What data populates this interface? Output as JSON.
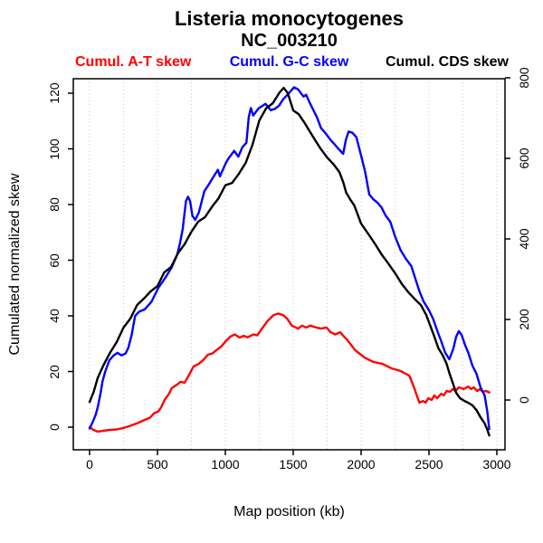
{
  "title": {
    "line1": "Listeria monocytogenes",
    "line2": "NC_003210"
  },
  "axis_labels": {
    "x": "Map position (kb)",
    "y_left": "Cumulated normalized skew"
  },
  "chart_data": {
    "type": "line",
    "title": "Listeria monocytogenes NC_003210",
    "xlabel": "Map position (kb)",
    "ylabel_left": "Cumulated normalized skew",
    "x_ticks": [
      0,
      500,
      1000,
      1500,
      2000,
      2500,
      3000
    ],
    "y_left_ticks": [
      0,
      20,
      40,
      60,
      80,
      100,
      120
    ],
    "y_right_ticks": [
      0,
      200,
      400,
      600,
      800
    ],
    "gridline_interval_kb": 250,
    "x_axis_max_kb": 3000,
    "genome_length_kb": 2944,
    "grid_color": "#c9c9c9",
    "legend_position": "top",
    "series": [
      {
        "name": "Cumul. A-T skew",
        "color": "#ff0000",
        "axis": "left",
        "points": [
          [
            0,
            0
          ],
          [
            30,
            -1
          ],
          [
            60,
            -1.6
          ],
          [
            100,
            -1.3
          ],
          [
            150,
            -1
          ],
          [
            200,
            -0.8
          ],
          [
            250,
            -0.3
          ],
          [
            300,
            0.5
          ],
          [
            355,
            1.5
          ],
          [
            405,
            2.6
          ],
          [
            445,
            3.4
          ],
          [
            475,
            5
          ],
          [
            505,
            5.6
          ],
          [
            525,
            7
          ],
          [
            555,
            10
          ],
          [
            585,
            12
          ],
          [
            605,
            14
          ],
          [
            635,
            15
          ],
          [
            670,
            16.3
          ],
          [
            700,
            16
          ],
          [
            735,
            19
          ],
          [
            765,
            21.8
          ],
          [
            805,
            22.8
          ],
          [
            835,
            24
          ],
          [
            870,
            26
          ],
          [
            905,
            26.5
          ],
          [
            935,
            27.7
          ],
          [
            970,
            29
          ],
          [
            1005,
            31
          ],
          [
            1035,
            32.5
          ],
          [
            1070,
            33.3
          ],
          [
            1105,
            32.2
          ],
          [
            1135,
            32.8
          ],
          [
            1165,
            32.3
          ],
          [
            1205,
            33.3
          ],
          [
            1235,
            33
          ],
          [
            1270,
            35.4
          ],
          [
            1310,
            38.1
          ],
          [
            1355,
            40.3
          ],
          [
            1390,
            40.8
          ],
          [
            1425,
            40.3
          ],
          [
            1455,
            39
          ],
          [
            1490,
            36.5
          ],
          [
            1535,
            35.4
          ],
          [
            1565,
            36.5
          ],
          [
            1595,
            35.8
          ],
          [
            1625,
            36.5
          ],
          [
            1670,
            35.8
          ],
          [
            1705,
            35.4
          ],
          [
            1745,
            35.8
          ],
          [
            1775,
            34.1
          ],
          [
            1810,
            33.3
          ],
          [
            1845,
            34.1
          ],
          [
            1875,
            32.5
          ],
          [
            1895,
            31.5
          ],
          [
            1955,
            27.7
          ],
          [
            2025,
            25
          ],
          [
            2090,
            23.4
          ],
          [
            2155,
            22.8
          ],
          [
            2225,
            21.1
          ],
          [
            2290,
            20.2
          ],
          [
            2355,
            18.5
          ],
          [
            2390,
            14.3
          ],
          [
            2410,
            11.4
          ],
          [
            2430,
            8.8
          ],
          [
            2455,
            9.4
          ],
          [
            2475,
            8.8
          ],
          [
            2495,
            10.4
          ],
          [
            2520,
            9.8
          ],
          [
            2540,
            11.4
          ],
          [
            2560,
            10.4
          ],
          [
            2590,
            12
          ],
          [
            2610,
            11.4
          ],
          [
            2630,
            13
          ],
          [
            2655,
            12.7
          ],
          [
            2675,
            13.7
          ],
          [
            2695,
            13
          ],
          [
            2720,
            14.3
          ],
          [
            2755,
            13.7
          ],
          [
            2790,
            14.6
          ],
          [
            2810,
            13.7
          ],
          [
            2830,
            14.3
          ],
          [
            2855,
            13
          ],
          [
            2875,
            13.7
          ],
          [
            2895,
            12.7
          ],
          [
            2920,
            13
          ],
          [
            2944,
            12.5
          ]
        ]
      },
      {
        "name": "Cumul. G-C skew",
        "color": "#0000ff",
        "axis": "left",
        "points": [
          [
            0,
            -0.5
          ],
          [
            20,
            1.5
          ],
          [
            45,
            4.5
          ],
          [
            60,
            7.2
          ],
          [
            80,
            12
          ],
          [
            95,
            16.5
          ],
          [
            115,
            20
          ],
          [
            145,
            24
          ],
          [
            175,
            25.7
          ],
          [
            205,
            26.7
          ],
          [
            235,
            25.8
          ],
          [
            265,
            26.5
          ],
          [
            285,
            28.5
          ],
          [
            310,
            33.2
          ],
          [
            335,
            40
          ],
          [
            365,
            41.5
          ],
          [
            405,
            42.3
          ],
          [
            455,
            45
          ],
          [
            505,
            50
          ],
          [
            555,
            53.5
          ],
          [
            605,
            57.5
          ],
          [
            645,
            62
          ],
          [
            665,
            66
          ],
          [
            685,
            71
          ],
          [
            710,
            81.3
          ],
          [
            725,
            82.8
          ],
          [
            740,
            81.3
          ],
          [
            757,
            76
          ],
          [
            778,
            74.5
          ],
          [
            805,
            77.2
          ],
          [
            845,
            84.8
          ],
          [
            875,
            87
          ],
          [
            915,
            90.2
          ],
          [
            945,
            92.5
          ],
          [
            960,
            90.1
          ],
          [
            1005,
            95.1
          ],
          [
            1025,
            96.7
          ],
          [
            1065,
            99.3
          ],
          [
            1095,
            97.2
          ],
          [
            1125,
            100.6
          ],
          [
            1155,
            102.2
          ],
          [
            1172,
            111.3
          ],
          [
            1188,
            114.7
          ],
          [
            1205,
            112
          ],
          [
            1245,
            114.6
          ],
          [
            1275,
            115.5
          ],
          [
            1295,
            116.2
          ],
          [
            1335,
            113.9
          ],
          [
            1365,
            114.4
          ],
          [
            1395,
            115.5
          ],
          [
            1425,
            117.8
          ],
          [
            1475,
            120.4
          ],
          [
            1505,
            122.1
          ],
          [
            1535,
            121.4
          ],
          [
            1575,
            118.8
          ],
          [
            1595,
            119.4
          ],
          [
            1625,
            116.2
          ],
          [
            1675,
            111.3
          ],
          [
            1705,
            107.4
          ],
          [
            1735,
            105.8
          ],
          [
            1775,
            103.2
          ],
          [
            1805,
            101.6
          ],
          [
            1835,
            99.9
          ],
          [
            1868,
            98.2
          ],
          [
            1888,
            103.3
          ],
          [
            1908,
            106.2
          ],
          [
            1935,
            105.8
          ],
          [
            1965,
            104.2
          ],
          [
            2000,
            97.6
          ],
          [
            2030,
            91.7
          ],
          [
            2060,
            83.6
          ],
          [
            2090,
            81.9
          ],
          [
            2120,
            80.7
          ],
          [
            2150,
            79
          ],
          [
            2180,
            76.1
          ],
          [
            2215,
            73.8
          ],
          [
            2250,
            68.6
          ],
          [
            2290,
            63.7
          ],
          [
            2330,
            60.5
          ],
          [
            2370,
            57.9
          ],
          [
            2400,
            53.3
          ],
          [
            2430,
            48.8
          ],
          [
            2460,
            45.2
          ],
          [
            2500,
            42
          ],
          [
            2530,
            39
          ],
          [
            2560,
            34.8
          ],
          [
            2590,
            30.9
          ],
          [
            2620,
            26.7
          ],
          [
            2650,
            24.4
          ],
          [
            2680,
            28.3
          ],
          [
            2700,
            32.5
          ],
          [
            2720,
            34.5
          ],
          [
            2740,
            33.2
          ],
          [
            2765,
            29.6
          ],
          [
            2790,
            26.7
          ],
          [
            2820,
            22.1
          ],
          [
            2850,
            19.2
          ],
          [
            2880,
            14.3
          ],
          [
            2910,
            11.4
          ],
          [
            2930,
            5.5
          ],
          [
            2944,
            -0.7
          ]
        ]
      },
      {
        "name": "Cumul. CDS skew",
        "color": "#000000",
        "axis": "right",
        "points": [
          [
            0,
            -5
          ],
          [
            30,
            20
          ],
          [
            60,
            55
          ],
          [
            100,
            85
          ],
          [
            150,
            117
          ],
          [
            200,
            144
          ],
          [
            250,
            180
          ],
          [
            300,
            202
          ],
          [
            350,
            236
          ],
          [
            400,
            252
          ],
          [
            450,
            270
          ],
          [
            500,
            283
          ],
          [
            550,
            317
          ],
          [
            600,
            330
          ],
          [
            650,
            364
          ],
          [
            700,
            387
          ],
          [
            750,
            418
          ],
          [
            800,
            443
          ],
          [
            850,
            454
          ],
          [
            900,
            479
          ],
          [
            950,
            501
          ],
          [
            1000,
            533
          ],
          [
            1050,
            539
          ],
          [
            1100,
            562
          ],
          [
            1150,
            589
          ],
          [
            1200,
            634
          ],
          [
            1250,
            694
          ],
          [
            1300,
            724
          ],
          [
            1350,
            737
          ],
          [
            1400,
            764
          ],
          [
            1430,
            775
          ],
          [
            1460,
            762
          ],
          [
            1500,
            719
          ],
          [
            1540,
            710
          ],
          [
            1580,
            690
          ],
          [
            1620,
            668
          ],
          [
            1660,
            646
          ],
          [
            1700,
            625
          ],
          [
            1750,
            602
          ],
          [
            1800,
            584
          ],
          [
            1840,
            566
          ],
          [
            1870,
            539
          ],
          [
            1890,
            515
          ],
          [
            1920,
            498
          ],
          [
            1950,
            483
          ],
          [
            2000,
            438
          ],
          [
            2060,
            409
          ],
          [
            2100,
            389
          ],
          [
            2150,
            362
          ],
          [
            2200,
            339
          ],
          [
            2250,
            315
          ],
          [
            2300,
            288
          ],
          [
            2350,
            267
          ],
          [
            2400,
            249
          ],
          [
            2440,
            236
          ],
          [
            2480,
            211
          ],
          [
            2510,
            184
          ],
          [
            2540,
            157
          ],
          [
            2570,
            128
          ],
          [
            2600,
            112
          ],
          [
            2630,
            90
          ],
          [
            2650,
            67
          ],
          [
            2680,
            38
          ],
          [
            2700,
            18
          ],
          [
            2730,
            4
          ],
          [
            2760,
            -2
          ],
          [
            2790,
            -7
          ],
          [
            2820,
            -13
          ],
          [
            2850,
            -25
          ],
          [
            2880,
            -43
          ],
          [
            2910,
            -58
          ],
          [
            2930,
            -74
          ],
          [
            2944,
            -88
          ]
        ]
      }
    ]
  }
}
